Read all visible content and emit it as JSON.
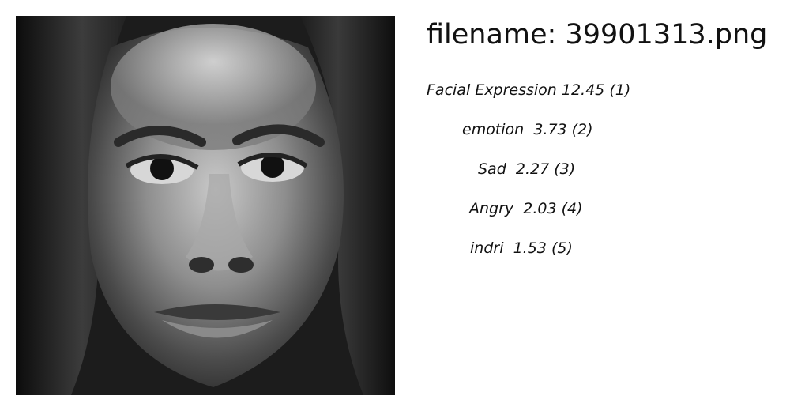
{
  "filename_text": "filename: 39901313.png",
  "predictions": [
    {
      "label": "Facial Expression",
      "score": "12.45",
      "rank": "(1)"
    },
    {
      "label": "emotion",
      "score": "3.73",
      "rank": "(2)"
    },
    {
      "label": "Sad",
      "score": "2.27",
      "rank": "(3)"
    },
    {
      "label": "Angry",
      "score": "2.03",
      "rank": "(4)"
    },
    {
      "label": "indri",
      "score": "1.53",
      "rank": "(5)"
    }
  ]
}
